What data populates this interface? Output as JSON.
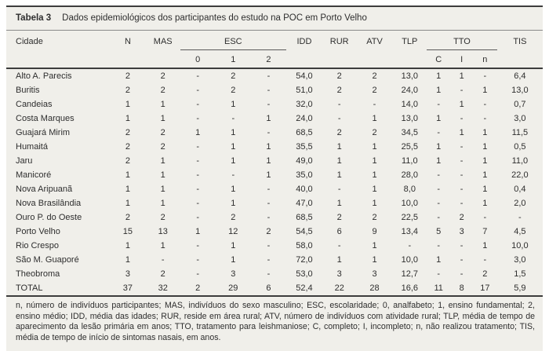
{
  "colors": {
    "block_background": "#f0efea",
    "text": "#2e2e2e",
    "rule_dark": "#3d3d3d",
    "rule_light": "#8a8a8a"
  },
  "table": {
    "label": "Tabela 3",
    "caption": "Dados epidemiológicos dos participantes do estudo na POC em Porto Velho",
    "columns": {
      "cidade": "Cidade",
      "n": "N",
      "mas": "MAS",
      "esc_group": "ESC",
      "esc_subs": [
        "0",
        "1",
        "2"
      ],
      "idd": "IDD",
      "rur": "RUR",
      "atv": "ATV",
      "tlp": "TLP",
      "tto_group": "TTO",
      "tto_subs": [
        "C",
        "I",
        "n"
      ],
      "tis": "TIS"
    },
    "rows": [
      [
        "Alto A. Parecis",
        "2",
        "2",
        "-",
        "2",
        "-",
        "54,0",
        "2",
        "2",
        "13,0",
        "1",
        "1",
        "-",
        "6,4"
      ],
      [
        "Buritis",
        "2",
        "2",
        "-",
        "2",
        "-",
        "51,0",
        "2",
        "2",
        "24,0",
        "1",
        "-",
        "1",
        "13,0"
      ],
      [
        "Candeias",
        "1",
        "1",
        "-",
        "1",
        "-",
        "32,0",
        "-",
        "-",
        "14,0",
        "-",
        "1",
        "-",
        "0,7"
      ],
      [
        "Costa Marques",
        "1",
        "1",
        "-",
        "-",
        "1",
        "24,0",
        "-",
        "1",
        "13,0",
        "1",
        "-",
        "-",
        "3,0"
      ],
      [
        "Guajará Mirim",
        "2",
        "2",
        "1",
        "1",
        "-",
        "68,5",
        "2",
        "2",
        "34,5",
        "-",
        "1",
        "1",
        "11,5"
      ],
      [
        "Humaitá",
        "2",
        "2",
        "-",
        "1",
        "1",
        "35,5",
        "1",
        "1",
        "25,5",
        "1",
        "-",
        "1",
        "0,5"
      ],
      [
        "Jaru",
        "2",
        "1",
        "-",
        "1",
        "1",
        "49,0",
        "1",
        "1",
        "11,0",
        "1",
        "-",
        "1",
        "11,0"
      ],
      [
        "Manicoré",
        "1",
        "1",
        "-",
        "-",
        "1",
        "35,0",
        "1",
        "1",
        "28,0",
        "-",
        "-",
        "1",
        "22,0"
      ],
      [
        "Nova Aripuanã",
        "1",
        "1",
        "-",
        "1",
        "-",
        "40,0",
        "-",
        "1",
        "8,0",
        "-",
        "-",
        "1",
        "0,4"
      ],
      [
        "Nova Brasilândia",
        "1",
        "1",
        "-",
        "1",
        "-",
        "47,0",
        "1",
        "1",
        "10,0",
        "-",
        "-",
        "1",
        "2,0"
      ],
      [
        "Ouro P. do Oeste",
        "2",
        "2",
        "-",
        "2",
        "-",
        "68,5",
        "2",
        "2",
        "22,5",
        "-",
        "2",
        "-",
        "-"
      ],
      [
        "Porto Velho",
        "15",
        "13",
        "1",
        "12",
        "2",
        "54,5",
        "6",
        "9",
        "13,4",
        "5",
        "3",
        "7",
        "4,5"
      ],
      [
        "Rio Crespo",
        "1",
        "1",
        "-",
        "1",
        "-",
        "58,0",
        "-",
        "1",
        "-",
        "-",
        "-",
        "1",
        "10,0"
      ],
      [
        "São M. Guaporé",
        "1",
        "-",
        "-",
        "1",
        "-",
        "72,0",
        "1",
        "1",
        "10,0",
        "1",
        "-",
        "-",
        "3,0"
      ],
      [
        "Theobroma",
        "3",
        "2",
        "-",
        "3",
        "-",
        "53,0",
        "3",
        "3",
        "12,7",
        "-",
        "-",
        "2",
        "1,5"
      ]
    ],
    "total_row": [
      "TOTAL",
      "37",
      "32",
      "2",
      "29",
      "6",
      "52,4",
      "22",
      "28",
      "16,6",
      "11",
      "8",
      "17",
      "5,9"
    ],
    "footnote": "n, número de indivíduos participantes; MAS, indivíduos do sexo masculino; ESC, escolaridade; 0, analfabeto; 1, ensino fundamental; 2, ensino médio; IDD, média das idades; RUR, reside em área rural; ATV, número de indivíduos com atividade rural; TLP, média de tempo de aparecimento da lesão primária em anos; TTO, tratamento para leishmaniose; C, completo; I, incompleto; n, não realizou tratamento; TIS, média de tempo de início de sintomas nasais, em anos."
  }
}
